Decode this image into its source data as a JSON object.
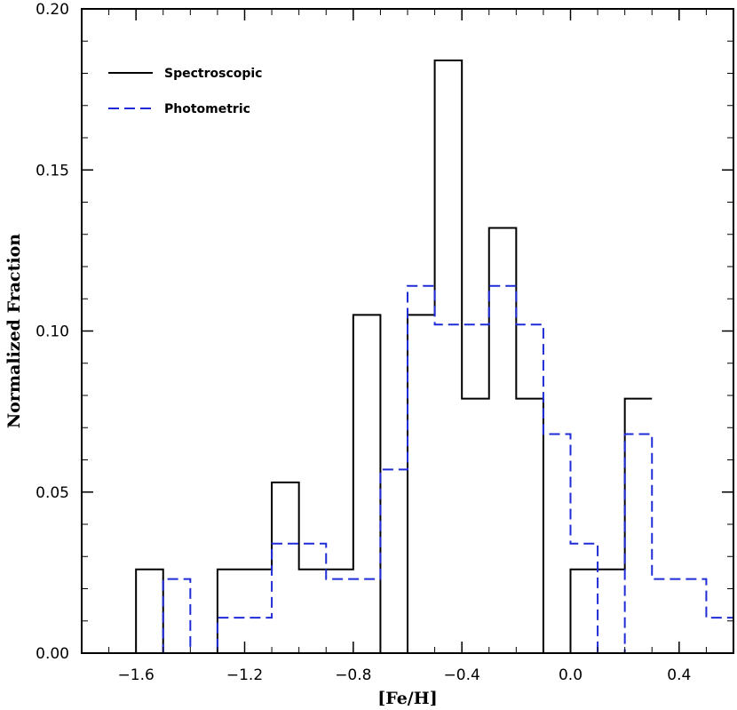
{
  "chart_data": {
    "type": "histogram",
    "title": "",
    "xlabel": "[Fe/H]",
    "ylabel": "Normalized Fraction",
    "xlim": [
      -1.8,
      0.6
    ],
    "ylim": [
      0.0,
      0.2
    ],
    "xticks": [
      -1.6,
      -1.2,
      -0.8,
      -0.4,
      0.0,
      0.4
    ],
    "xtick_labels": [
      "−1.6",
      "−1.2",
      "−0.8",
      "−0.4",
      "0.0",
      "0.4"
    ],
    "yticks": [
      0.0,
      0.05,
      0.1,
      0.15,
      0.2
    ],
    "ytick_labels": [
      "0.00",
      "0.05",
      "0.10",
      "0.15",
      "0.20"
    ],
    "legend_position": "top-left",
    "series": [
      {
        "name": "Spectroscopic",
        "style": "solid",
        "color": "#000000",
        "bin_edges": [
          -1.8,
          -1.7,
          -1.6,
          -1.5,
          -1.4,
          -1.3,
          -1.2,
          -1.1,
          -1.0,
          -0.9,
          -0.8,
          -0.7,
          -0.6,
          -0.5,
          -0.4,
          -0.3,
          -0.2,
          -0.1,
          0.0,
          0.1,
          0.2,
          0.3
        ],
        "values": [
          0.0,
          0.0,
          0.026,
          0.0,
          0.0,
          0.026,
          0.026,
          0.053,
          0.026,
          0.026,
          0.105,
          0.0,
          0.105,
          0.184,
          0.079,
          0.132,
          0.079,
          0.0,
          0.026,
          0.026,
          0.079
        ]
      },
      {
        "name": "Photometric",
        "style": "dashed",
        "color": "#1f2bd6",
        "bin_edges": [
          -1.8,
          -1.7,
          -1.6,
          -1.5,
          -1.4,
          -1.3,
          -1.2,
          -1.1,
          -1.0,
          -0.9,
          -0.8,
          -0.7,
          -0.6,
          -0.5,
          -0.4,
          -0.3,
          -0.2,
          -0.1,
          0.0,
          0.1,
          0.2,
          0.3,
          0.4,
          0.5,
          0.6
        ],
        "values": [
          0.0,
          0.0,
          0.0,
          0.023,
          0.0,
          0.011,
          0.011,
          0.034,
          0.034,
          0.023,
          0.023,
          0.057,
          0.114,
          0.102,
          0.102,
          0.114,
          0.102,
          0.068,
          0.034,
          0.0,
          0.068,
          0.023,
          0.023,
          0.011
        ]
      }
    ]
  }
}
